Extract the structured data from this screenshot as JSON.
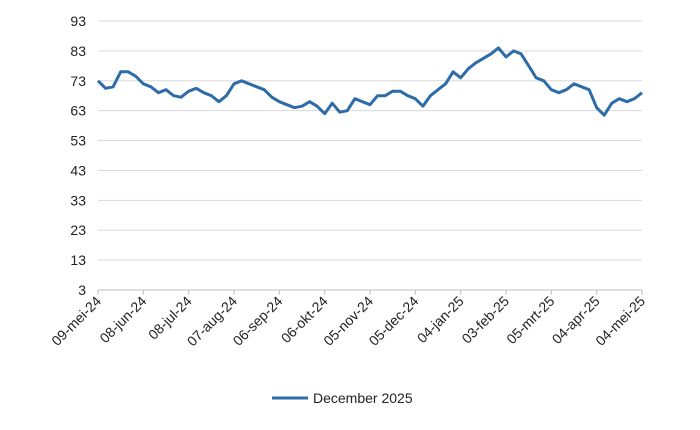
{
  "chart_data": {
    "type": "line",
    "categories": [
      "09-mei-24",
      null,
      null,
      null,
      null,
      null,
      "08-jun-24",
      null,
      null,
      null,
      null,
      null,
      "08-jul-24",
      null,
      null,
      null,
      null,
      null,
      "07-aug-24",
      null,
      null,
      null,
      null,
      null,
      "06-sep-24",
      null,
      null,
      null,
      null,
      null,
      "06-okt-24",
      null,
      null,
      null,
      null,
      null,
      "05-nov-24",
      null,
      null,
      null,
      null,
      null,
      "05-dec-24",
      null,
      null,
      null,
      null,
      null,
      "04-jan-25",
      null,
      null,
      null,
      null,
      null,
      "03-feb-25",
      null,
      null,
      null,
      null,
      null,
      "05-mrt-25",
      null,
      null,
      null,
      null,
      null,
      "04-apr-25",
      null,
      null,
      null,
      null,
      null,
      "04-mei-25"
    ],
    "series": [
      {
        "name": "December 2025",
        "color": "#2e6ca8",
        "values": [
          73,
          70.5,
          71,
          76,
          76,
          74.5,
          72,
          71,
          69,
          70,
          68,
          67.5,
          69.5,
          70.5,
          69,
          68,
          66,
          68,
          72,
          73,
          72,
          71,
          70,
          67.5,
          66,
          65,
          64,
          64.5,
          66,
          64.5,
          62,
          65.5,
          62.5,
          63,
          67,
          66,
          65,
          68,
          68,
          69.5,
          69.5,
          68,
          67,
          64.5,
          68,
          70,
          72,
          76,
          74,
          77,
          79,
          80.5,
          82,
          84,
          81,
          83,
          82,
          78,
          74,
          73,
          70,
          69,
          70,
          72,
          71,
          70,
          64,
          61.5,
          65.5,
          67,
          66,
          67,
          69
        ]
      }
    ],
    "ylim": [
      3,
      93
    ],
    "yticks": [
      3,
      13,
      23,
      33,
      43,
      53,
      63,
      73,
      83,
      93
    ],
    "grid": true,
    "legend": "bottom"
  }
}
